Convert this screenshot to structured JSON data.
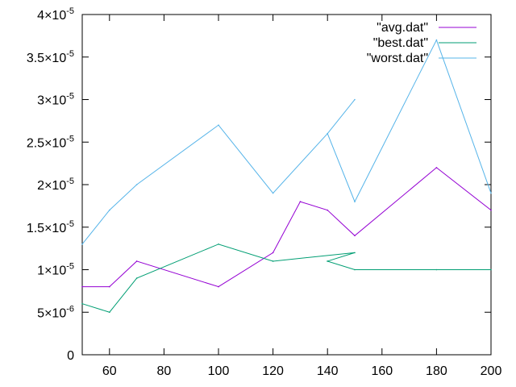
{
  "chart_data": {
    "type": "line",
    "x_ticks": [
      {
        "value": 60,
        "label": "60"
      },
      {
        "value": 80,
        "label": "80"
      },
      {
        "value": 100,
        "label": "100"
      },
      {
        "value": 120,
        "label": "120"
      },
      {
        "value": 140,
        "label": "140"
      },
      {
        "value": 160,
        "label": "160"
      },
      {
        "value": 180,
        "label": "180"
      },
      {
        "value": 200,
        "label": "200"
      }
    ],
    "y_ticks": [
      {
        "value": 0,
        "mant": "0",
        "exp": ""
      },
      {
        "value": 5e-06,
        "mant": "5×10",
        "exp": "-6"
      },
      {
        "value": 1e-05,
        "mant": "1×10",
        "exp": "-5"
      },
      {
        "value": 1.5e-05,
        "mant": "1.5×10",
        "exp": "-5"
      },
      {
        "value": 2e-05,
        "mant": "2×10",
        "exp": "-5"
      },
      {
        "value": 2.5e-05,
        "mant": "2.5×10",
        "exp": "-5"
      },
      {
        "value": 3e-05,
        "mant": "3×10",
        "exp": "-5"
      },
      {
        "value": 3.5e-05,
        "mant": "3.5×10",
        "exp": "-5"
      },
      {
        "value": 4e-05,
        "mant": "4×10",
        "exp": "-5"
      }
    ],
    "xlim": [
      50,
      200
    ],
    "ylim": [
      0,
      4e-05
    ],
    "grid": false,
    "legend_position": "top-right",
    "series": [
      {
        "name": "\"avg.dat\"",
        "color": "#9400d3",
        "points": [
          [
            50,
            8e-06
          ],
          [
            60,
            8e-06
          ],
          [
            70,
            1.1e-05
          ],
          [
            100,
            8e-06
          ],
          [
            120,
            1.2e-05
          ],
          [
            130,
            1.8e-05
          ],
          [
            140,
            1.7e-05
          ],
          [
            150,
            1.4e-05
          ],
          [
            180,
            2.2e-05
          ],
          [
            200,
            1.7e-05
          ]
        ]
      },
      {
        "name": "\"best.dat\"",
        "color": "#009e73",
        "points": [
          [
            50,
            6e-06
          ],
          [
            60,
            5e-06
          ],
          [
            70,
            9e-06
          ],
          [
            100,
            1.3e-05
          ],
          [
            120,
            1.1e-05
          ],
          [
            150,
            1.2e-05
          ],
          [
            140,
            1.1e-05
          ],
          [
            150,
            1e-05
          ],
          [
            180,
            1e-05
          ],
          [
            200,
            1e-05
          ]
        ]
      },
      {
        "name": "\"worst.dat\"",
        "color": "#56b4e9",
        "points": [
          [
            50,
            1.3e-05
          ],
          [
            60,
            1.7e-05
          ],
          [
            70,
            2e-05
          ],
          [
            100,
            2.7e-05
          ],
          [
            120,
            1.9e-05
          ],
          [
            140,
            2.6e-05
          ],
          [
            150,
            3e-05
          ],
          [
            140,
            2.6e-05
          ],
          [
            150,
            1.8e-05
          ],
          [
            180,
            3.7e-05
          ],
          [
            200,
            1.9e-05
          ]
        ]
      }
    ]
  }
}
